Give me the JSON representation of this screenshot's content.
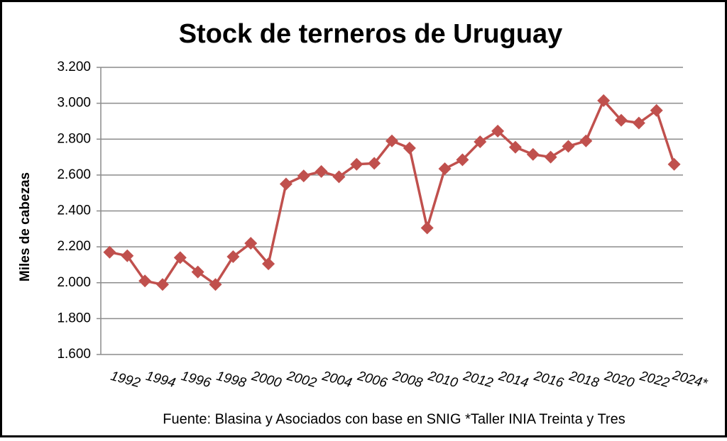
{
  "chart_data": {
    "type": "line",
    "title": "Stock de terneros de Uruguay",
    "y_label": "Miles de cabezas",
    "source": "Fuente: Blasina y Asociados con base en SNIG *Taller INIA Treinta y Tres",
    "categories": [
      "1992",
      null,
      "1994",
      null,
      "1996",
      null,
      "1998",
      null,
      "2000",
      null,
      "2002",
      null,
      "2004",
      null,
      "2006",
      null,
      "2008",
      null,
      "2010",
      null,
      "2012",
      null,
      "2014",
      null,
      "2016",
      null,
      "2018",
      null,
      "2020",
      null,
      "2022",
      null,
      "2024*"
    ],
    "values": [
      2170,
      2150,
      2010,
      1990,
      2140,
      2060,
      1990,
      2145,
      2220,
      2105,
      2550,
      2595,
      2620,
      2590,
      2660,
      2665,
      2790,
      2750,
      2305,
      2635,
      2685,
      2785,
      2845,
      2755,
      2715,
      2700,
      2760,
      2790,
      3015,
      2905,
      2890,
      2960,
      2660
    ],
    "color": "#c0504d",
    "ylim": [
      1600,
      3200
    ],
    "yticks": [
      {
        "value": 1600,
        "label": "1.600"
      },
      {
        "value": 1800,
        "label": "1.800"
      },
      {
        "value": 2000,
        "label": "2.000"
      },
      {
        "value": 2200,
        "label": "2.200"
      },
      {
        "value": 2400,
        "label": "2.400"
      },
      {
        "value": 2600,
        "label": "2.600"
      },
      {
        "value": 2800,
        "label": "2.800"
      },
      {
        "value": 3000,
        "label": "3.000"
      },
      {
        "value": 3200,
        "label": "3.200"
      }
    ],
    "grid": true
  }
}
